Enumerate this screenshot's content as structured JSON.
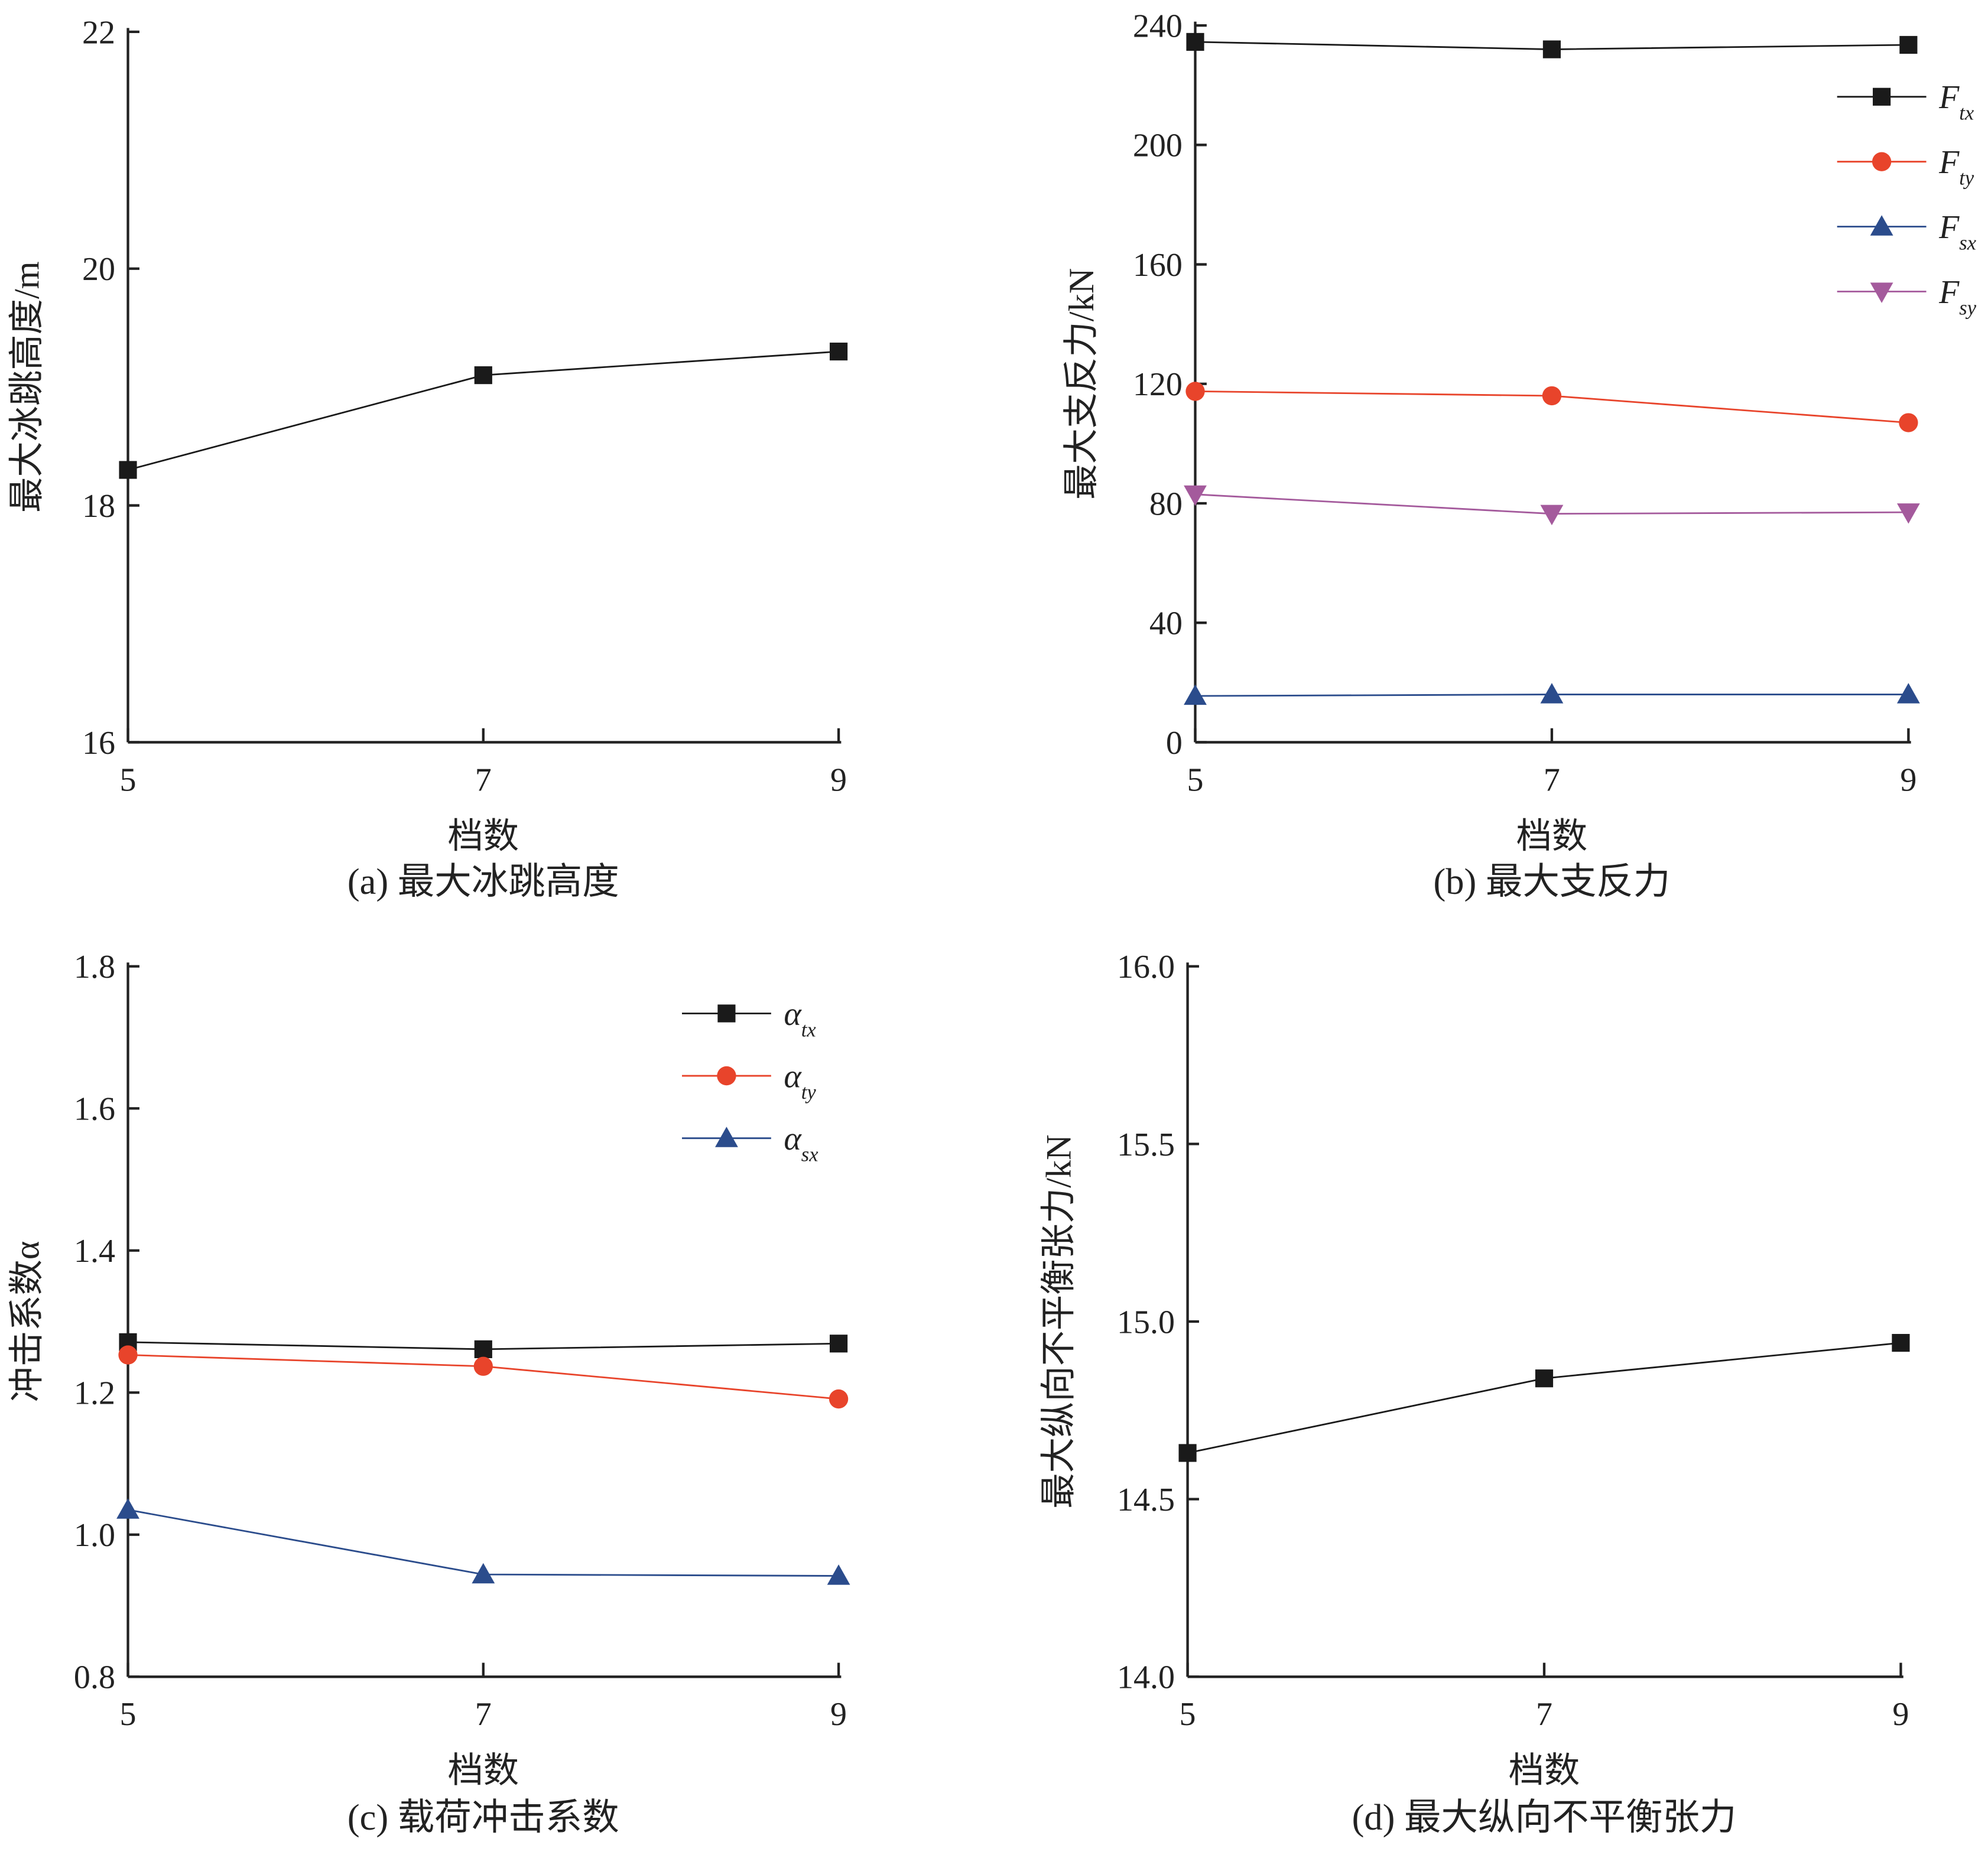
{
  "chart_data": [
    {
      "id": "a",
      "type": "line",
      "title": "(a) 最大冰跳高度",
      "xlabel": "档数",
      "ylabel": "最大冰跳高度/m",
      "x": [
        5,
        7,
        9
      ],
      "xticks": [
        "5",
        "7",
        "9"
      ],
      "ylim": [
        16,
        22
      ],
      "yticks": [
        "16",
        "18",
        "20",
        "22"
      ],
      "grid": false,
      "legend": "none",
      "series": [
        {
          "name": "",
          "marker": "square",
          "color": "#1a1a1a",
          "values": [
            18.3,
            19.1,
            19.3
          ]
        }
      ]
    },
    {
      "id": "b",
      "type": "line",
      "title": "(b) 最大支反力",
      "xlabel": "档数",
      "ylabel": "最大支反力/kN",
      "x": [
        5,
        7,
        9
      ],
      "xticks": [
        "5",
        "7",
        "9"
      ],
      "ylim": [
        0,
        240
      ],
      "yticks": [
        "0",
        "40",
        "80",
        "120",
        "160",
        "200",
        "240"
      ],
      "grid": false,
      "legend": "top-right",
      "series": [
        {
          "name": "F",
          "sub": "tx",
          "marker": "square",
          "color": "#1a1a1a",
          "values": [
            234.5,
            232,
            233.5
          ]
        },
        {
          "name": "F",
          "sub": "ty",
          "marker": "circle",
          "color": "#e8442b",
          "values": [
            117.5,
            116,
            107
          ]
        },
        {
          "name": "F",
          "sub": "sx",
          "marker": "triangle-up",
          "color": "#2b4c8c",
          "values": [
            15.5,
            16,
            16
          ]
        },
        {
          "name": "F",
          "sub": "sy",
          "marker": "triangle-down",
          "color": "#a45a9c",
          "values": [
            83,
            76.5,
            77
          ]
        }
      ]
    },
    {
      "id": "c",
      "type": "line",
      "title": "(c) 载荷冲击系数",
      "xlabel": "档数",
      "ylabel": "冲击系数α",
      "x": [
        5,
        7,
        9
      ],
      "xticks": [
        "5",
        "7",
        "9"
      ],
      "ylim": [
        0.8,
        1.8
      ],
      "yticks": [
        "0.8",
        "1.0",
        "1.2",
        "1.4",
        "1.6",
        "1.8"
      ],
      "grid": false,
      "legend": "top-right",
      "series": [
        {
          "name": "α",
          "sub": "tx",
          "marker": "square",
          "color": "#1a1a1a",
          "values": [
            1.271,
            1.261,
            1.269
          ]
        },
        {
          "name": "α",
          "sub": "ty",
          "marker": "circle",
          "color": "#e8442b",
          "values": [
            1.253,
            1.237,
            1.191
          ]
        },
        {
          "name": "α",
          "sub": "sx",
          "marker": "triangle-up",
          "color": "#2b4c8c",
          "values": [
            1.035,
            0.944,
            0.942
          ]
        }
      ]
    },
    {
      "id": "d",
      "type": "line",
      "title": "(d) 最大纵向不平衡张力",
      "xlabel": "档数",
      "ylabel": "最大纵向不平衡张力/kN",
      "x": [
        5,
        7,
        9
      ],
      "xticks": [
        "5",
        "7",
        "9"
      ],
      "ylim": [
        14.0,
        16.0
      ],
      "yticks": [
        "14.0",
        "14.5",
        "15.0",
        "15.5",
        "16.0"
      ],
      "grid": false,
      "legend": "none",
      "series": [
        {
          "name": "",
          "marker": "square",
          "color": "#1a1a1a",
          "values": [
            14.63,
            14.84,
            14.94
          ]
        }
      ]
    }
  ]
}
